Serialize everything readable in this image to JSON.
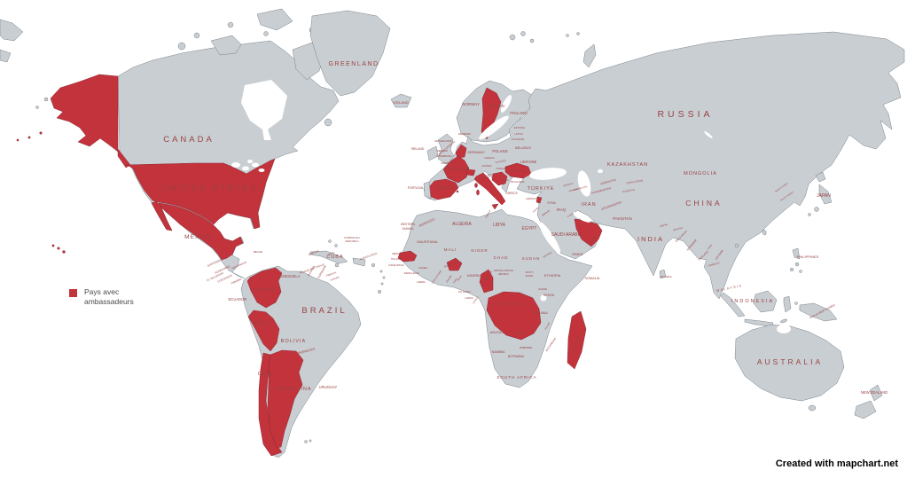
{
  "legend": {
    "label_line1": "Pays avec",
    "label_line2": "ambassadeurs"
  },
  "attribution": "Created with mapchart.net",
  "colors": {
    "ocean": "#ffffff",
    "land": "#c9ced3",
    "border": "#6e787f",
    "highlight": "#c2333c",
    "highlight_border": "#8c2a33",
    "label": "#9a4242",
    "legend_text": "#4a4a4a",
    "attribution": "#000000"
  },
  "highlighted_countries": [
    "United States",
    "Mexico",
    "Colombia",
    "Peru",
    "Chile",
    "Argentina",
    "Sweden",
    "Netherlands",
    "Belgium",
    "France",
    "Spain",
    "Switzerland",
    "Italy",
    "Serbia",
    "Romania",
    "Lebanon",
    "United Arab Emirates",
    "Oman",
    "Senegal",
    "Burkina Faso",
    "Cameroon",
    "DR Congo",
    "Madagascar"
  ],
  "map": {
    "label_format": [
      "text",
      "x",
      "y",
      "font_size",
      "rotation",
      "letter_spacing"
    ],
    "labels": [
      [
        "CANADA",
        213,
        160,
        9.5,
        0,
        3
      ],
      [
        "UNITED STATES",
        237,
        215,
        9,
        0,
        3
      ],
      [
        "MEXICO",
        224,
        269,
        6.5,
        0,
        1
      ],
      [
        "GREENLAND",
        399,
        74,
        7,
        0,
        1.5
      ],
      [
        "ICELAND",
        452,
        117,
        4,
        0,
        0
      ],
      [
        "CUBA",
        378,
        291,
        5.5,
        0,
        1
      ],
      [
        "JAMAICA",
        354,
        286,
        3,
        -20,
        0
      ],
      [
        "HAITI",
        374,
        287,
        3,
        -20,
        0
      ],
      [
        "DOMINICAN",
        397,
        269,
        3,
        0,
        0
      ],
      [
        "REPUBLIC",
        397,
        273,
        3,
        0,
        0
      ],
      [
        "PUERTO RICO",
        416,
        290,
        3,
        -20,
        0
      ],
      [
        "BELIZE",
        291,
        285,
        3,
        0,
        0
      ],
      [
        "GUATEMALA",
        243,
        297,
        3.2,
        -25,
        0
      ],
      [
        "HONDURAS",
        251,
        305,
        3.2,
        -25,
        0
      ],
      [
        "EL SALVADOR",
        243,
        313,
        3,
        -25,
        0
      ],
      [
        "NICARAGUA",
        270,
        300,
        3,
        -25,
        0
      ],
      [
        "COSTA RICA",
        254,
        315,
        3,
        -25,
        0
      ],
      [
        "PANAMA",
        267,
        318,
        3,
        -25,
        0
      ],
      [
        "TRINIDAD AND TOBAGO",
        352,
        304,
        2.6,
        -20,
        0
      ],
      [
        "VENEZUELA",
        326,
        313,
        4.2,
        0,
        0
      ],
      [
        "GUYANA",
        352,
        306,
        3.2,
        -60,
        0
      ],
      [
        "SURINAME",
        364,
        307,
        3.2,
        -60,
        0
      ],
      [
        "FRENCH",
        374,
        310,
        2.8,
        -20,
        0
      ],
      [
        "GUIANA",
        378,
        315,
        2.8,
        -20,
        0
      ],
      [
        "ECUADOR",
        268,
        339,
        4.2,
        0,
        0
      ],
      [
        "COLOMBIA",
        298,
        328,
        4.5,
        0,
        0
      ],
      [
        "PERU",
        295,
        366,
        5.5,
        0,
        1
      ],
      [
        "BRAZIL",
        366,
        353,
        9.5,
        0,
        3
      ],
      [
        "BOLIVIA",
        331,
        386,
        5.5,
        0,
        1
      ],
      [
        "PARAGUAY",
        346,
        397,
        3.8,
        -15,
        0
      ],
      [
        "URUGUAY",
        370,
        438,
        4.2,
        0,
        0
      ],
      [
        "CHILE",
        299,
        423,
        5.5,
        0,
        0
      ],
      [
        "ARGENTINA",
        331,
        440,
        5.5,
        0,
        1
      ],
      [
        "NORWAY",
        531,
        119,
        4.5,
        0,
        0
      ],
      [
        "SWEDEN",
        559,
        121,
        4.5,
        0,
        0
      ],
      [
        "FINLAND",
        585,
        129,
        4.5,
        0,
        0
      ],
      [
        "ESTONIA",
        586,
        145,
        2.8,
        0,
        0
      ],
      [
        "LATVIA",
        585,
        152,
        2.8,
        0,
        0
      ],
      [
        "LITHUANIA",
        584,
        158,
        2.8,
        0,
        0
      ],
      [
        "DENMARK",
        524,
        152,
        2.8,
        0,
        0
      ],
      [
        "IRELAND",
        471,
        169,
        3.4,
        0,
        0
      ],
      [
        "UNITED KINGDOM",
        504,
        168,
        2.8,
        -40,
        0
      ],
      [
        "NETHERLANDS",
        500,
        160,
        2.6,
        0,
        0
      ],
      [
        "BELGIUM",
        499,
        171,
        2.6,
        0,
        0
      ],
      [
        "LUXEMBOURG",
        501,
        177,
        2.4,
        0,
        0
      ],
      [
        "GERMANY",
        537,
        173,
        4,
        0,
        0
      ],
      [
        "POLAND",
        564,
        172,
        4.2,
        0,
        0
      ],
      [
        "BELARUS",
        590,
        168,
        3.8,
        0,
        0
      ],
      [
        "UKRAINE",
        596,
        184,
        4.2,
        0,
        0
      ],
      [
        "CZECHIA",
        552,
        179,
        2.6,
        0,
        0
      ],
      [
        "SLOVAKIA",
        565,
        183,
        2.6,
        -10,
        0
      ],
      [
        "AUSTRIA",
        549,
        188,
        2.6,
        0,
        0
      ],
      [
        "HUNGARY",
        566,
        191,
        2.6,
        0,
        0
      ],
      [
        "CROATIA",
        550,
        199,
        2.5,
        -20,
        0
      ],
      [
        "SERBIA",
        569,
        204,
        2.5,
        0,
        0
      ],
      [
        "BULGARIA",
        584,
        206,
        3,
        0,
        0
      ],
      [
        "GREECE",
        577,
        219,
        3.2,
        0,
        0
      ],
      [
        "FRANCE",
        516,
        192,
        5.5,
        0,
        1
      ],
      [
        "SPAIN",
        504,
        214,
        6,
        0,
        1
      ],
      [
        "PORTUGAL",
        469,
        213,
        3.4,
        0,
        0
      ],
      [
        "ITALY",
        546,
        202,
        4.5,
        0,
        0
      ],
      [
        "SWITZERLAND",
        506,
        185,
        2.4,
        0,
        0
      ],
      [
        "ROMANIA",
        584,
        194,
        4,
        0,
        0
      ],
      [
        "TÜRKIYE",
        610,
        214,
        5.5,
        0,
        1
      ],
      [
        "RUSSIA",
        773,
        132,
        10.5,
        0,
        4
      ],
      [
        "KAZAKHSTAN",
        708,
        187,
        5.5,
        0,
        1
      ],
      [
        "MONGOLIA",
        790,
        197,
        5.5,
        0,
        1
      ],
      [
        "CHINA",
        794,
        232,
        8.5,
        0,
        3
      ],
      [
        "JAPAN",
        929,
        222,
        5,
        0,
        0
      ],
      [
        "NORTH KOREA",
        882,
        212,
        2.4,
        -35,
        0
      ],
      [
        "SOUTH KOREA",
        888,
        222,
        2.4,
        -35,
        0
      ],
      [
        "INDIA",
        734,
        272,
        7.5,
        0,
        2
      ],
      [
        "PAKISTAN",
        702,
        248,
        4.5,
        0,
        0
      ],
      [
        "AFGHANISTAN",
        690,
        233,
        3.4,
        -20,
        0
      ],
      [
        "NEPAL",
        749,
        255,
        2.8,
        -15,
        0
      ],
      [
        "BHUTAN",
        765,
        259,
        2.6,
        -15,
        0
      ],
      [
        "BANGLADESH",
        769,
        267,
        2.6,
        -45,
        0
      ],
      [
        "MYANMAR",
        781,
        277,
        3.2,
        -50,
        0
      ],
      [
        "THAILAND",
        794,
        289,
        3,
        -45,
        0
      ],
      [
        "LAOS",
        801,
        279,
        2.6,
        -45,
        0
      ],
      [
        "VIETNAM",
        812,
        288,
        3,
        -55,
        0
      ],
      [
        "CAMBODIA",
        805,
        299,
        2.6,
        -15,
        0
      ],
      [
        "SRI LANKA",
        751,
        313,
        2.6,
        0,
        0
      ],
      [
        "PHILIPPINES",
        911,
        291,
        4,
        0,
        0
      ],
      [
        "MALAYSIA",
        823,
        326,
        3.6,
        -12,
        1.5
      ],
      [
        "INDONESIA",
        849,
        341,
        5.5,
        0,
        2
      ],
      [
        "PAPUA NEW GUINEA",
        928,
        352,
        3.2,
        -28,
        0
      ],
      [
        "IRAN",
        664,
        232,
        5.5,
        0,
        1
      ],
      [
        "IRAQ",
        633,
        238,
        4.2,
        0,
        0
      ],
      [
        "SYRIA",
        622,
        230,
        3.2,
        0,
        0
      ],
      [
        "SAUDI ARABIA",
        639,
        266,
        5,
        0,
        0
      ],
      [
        "YEMEN",
        651,
        288,
        3.6,
        0,
        0
      ],
      [
        "OMAN",
        669,
        272,
        3.6,
        -55,
        0
      ],
      [
        "QATAR",
        652,
        249,
        2.2,
        -30,
        0
      ],
      [
        "KUWAIT",
        644,
        243,
        2.2,
        -30,
        0
      ],
      [
        "JORDAN",
        616,
        241,
        2.6,
        -35,
        0
      ],
      [
        "ISRAEL",
        605,
        237,
        2.4,
        -40,
        0
      ],
      [
        "LEBANON",
        599,
        225,
        2.4,
        0,
        0
      ],
      [
        "GEORGIA",
        641,
        209,
        2.5,
        -15,
        0
      ],
      [
        "ARMENIA",
        647,
        215,
        2.4,
        -15,
        0
      ],
      [
        "AZERBAIJAN",
        655,
        213,
        2.5,
        -15,
        0
      ],
      [
        "TURKMENISTAN",
        678,
        216,
        3,
        -15,
        0
      ],
      [
        "UZBEKISTAN",
        686,
        206,
        3,
        -15,
        0
      ],
      [
        "KYRGYZSTAN",
        716,
        206,
        2.8,
        -10,
        0
      ],
      [
        "TAJIKISTAN",
        709,
        216,
        2.6,
        -10,
        0
      ],
      [
        "MOROCCO",
        482,
        252,
        3.6,
        -25,
        0
      ],
      [
        "TUNISIA",
        551,
        242,
        2.6,
        -60,
        0
      ],
      [
        "WESTERN",
        460,
        254,
        3.2,
        0,
        0
      ],
      [
        "SAHARA",
        460,
        259,
        3.2,
        0,
        0
      ],
      [
        "ALGERIA",
        521,
        254,
        5,
        0,
        0
      ],
      [
        "LIBYA",
        563,
        255,
        5,
        0,
        0
      ],
      [
        "EGYPT",
        597,
        259,
        5,
        0,
        0
      ],
      [
        "MAURITANIA",
        482,
        274,
        3.8,
        0,
        0
      ],
      [
        "MALI",
        508,
        283,
        4.5,
        0,
        1
      ],
      [
        "NIGER",
        541,
        284,
        4.5,
        0,
        1
      ],
      [
        "CHAD",
        565,
        292,
        4.5,
        0,
        1
      ],
      [
        "SUDAN",
        599,
        293,
        4.5,
        0,
        1
      ],
      [
        "ERITREA",
        618,
        288,
        2.6,
        -30,
        0
      ],
      [
        "ETHIOPIA",
        623,
        312,
        4,
        0,
        0
      ],
      [
        "SOMALIA",
        668,
        315,
        3.8,
        0,
        0
      ],
      [
        "KENYA",
        619,
        334,
        3.8,
        0,
        0
      ],
      [
        "UGANDA",
        612,
        327,
        2.4,
        0,
        0
      ],
      [
        "TANZANIA",
        609,
        354,
        3.6,
        0,
        0
      ],
      [
        "DR CONGO",
        574,
        344,
        4.5,
        0,
        1
      ],
      [
        "NIGERIA",
        535,
        312,
        4,
        0,
        0
      ],
      [
        "CAMEROON",
        550,
        314,
        3.2,
        -55,
        0
      ],
      [
        "CENTRAL AFRICAN",
        568,
        306,
        2.4,
        0,
        0
      ],
      [
        "REPUBLIC",
        568,
        310,
        2.4,
        0,
        0
      ],
      [
        "SOUTH",
        597,
        308,
        2.5,
        0,
        0
      ],
      [
        "SUDAN",
        597,
        312,
        2.5,
        0,
        0
      ],
      [
        "SENEGAL",
        448,
        287,
        2.5,
        0,
        0
      ],
      [
        "THE GAMBIA",
        448,
        293,
        2.3,
        0,
        0
      ],
      [
        "GUINEA-BISSAU",
        447,
        300,
        2.3,
        0,
        0
      ],
      [
        "GUINEA",
        477,
        303,
        2.7,
        0,
        0
      ],
      [
        "SIERRA LEONE",
        464,
        309,
        2.3,
        0,
        0
      ],
      [
        "LIBERIA",
        475,
        319,
        2.5,
        0,
        0
      ],
      [
        "CÔTE D'IVOIRE",
        493,
        313,
        2.5,
        -55,
        0
      ],
      [
        "GHANA",
        507,
        315,
        2.7,
        -55,
        0
      ],
      [
        "TOGO",
        514,
        317,
        2.3,
        -55,
        0
      ],
      [
        "BENIN",
        519,
        314,
        2.3,
        -55,
        0
      ],
      [
        "BURKINA FASO",
        511,
        299,
        2.7,
        -15,
        0
      ],
      [
        "EQ. GUINEA",
        524,
        330,
        2.3,
        0,
        0
      ],
      [
        "GABON",
        529,
        337,
        2.5,
        0,
        0
      ],
      [
        "CONGO",
        537,
        339,
        2.5,
        -55,
        0
      ],
      [
        "ANGOLA",
        561,
        376,
        4,
        0,
        0
      ],
      [
        "ZAMBIA",
        586,
        377,
        3.6,
        0,
        0
      ],
      [
        "MALAWI",
        618,
        368,
        2.3,
        -60,
        0
      ],
      [
        "MOZAMBIQUE",
        622,
        389,
        2.7,
        -55,
        0
      ],
      [
        "ZIMBABWE",
        593,
        393,
        2.7,
        0,
        0
      ],
      [
        "NAMIBIA",
        562,
        398,
        3.6,
        0,
        0
      ],
      [
        "BOTSWANA",
        582,
        403,
        3.2,
        0,
        0
      ],
      [
        "SOUTH AFRICA",
        583,
        427,
        4.5,
        0,
        1
      ],
      [
        "MADAGASCAR",
        650,
        390,
        3.2,
        -72,
        0
      ],
      [
        "AUSTRALIA",
        891,
        411,
        8.5,
        0,
        3
      ],
      [
        "NEW ZEALAND",
        986,
        444,
        4.2,
        0,
        0
      ]
    ]
  }
}
